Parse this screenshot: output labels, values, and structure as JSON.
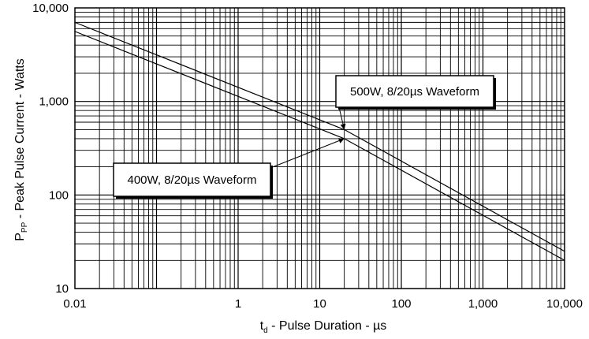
{
  "chart_data": {
    "type": "line",
    "x_scale": "log",
    "y_scale": "log",
    "xlim": [
      0.01,
      10000
    ],
    "ylim": [
      10,
      10000
    ],
    "grid": true,
    "x_ticks": [
      {
        "value": 0.01,
        "label": "0.01"
      },
      {
        "value": 1,
        "label": "1"
      },
      {
        "value": 10,
        "label": "10"
      },
      {
        "value": 100,
        "label": "100"
      },
      {
        "value": 1000,
        "label": "1,000"
      },
      {
        "value": 10000,
        "label": "10,000"
      }
    ],
    "y_ticks": [
      {
        "value": 10,
        "label": "10"
      },
      {
        "value": 100,
        "label": "100"
      },
      {
        "value": 1000,
        "label": "1,000"
      },
      {
        "value": 10000,
        "label": "10,000"
      }
    ],
    "xlabel": {
      "main": "t",
      "sub": "d",
      "rest": " - Pulse Duration - µs"
    },
    "ylabel": {
      "main": "P",
      "sub": "PP",
      "rest": " - Peak Pulse Current - Watts"
    },
    "series": [
      {
        "name": "500W, 8/20µs Waveform",
        "x": [
          0.01,
          20,
          10000
        ],
        "y": [
          7000,
          500,
          25
        ]
      },
      {
        "name": "400W, 8/20µs Waveform",
        "x": [
          0.01,
          20,
          10000
        ],
        "y": [
          5600,
          400,
          20
        ]
      }
    ],
    "annotations": [
      {
        "text": "500W, 8/20µs Waveform",
        "series": 0,
        "at_x": 20,
        "at_y": 500
      },
      {
        "text": "400W, 8/20µs Waveform",
        "series": 1,
        "at_x": 20,
        "at_y": 400
      }
    ]
  }
}
